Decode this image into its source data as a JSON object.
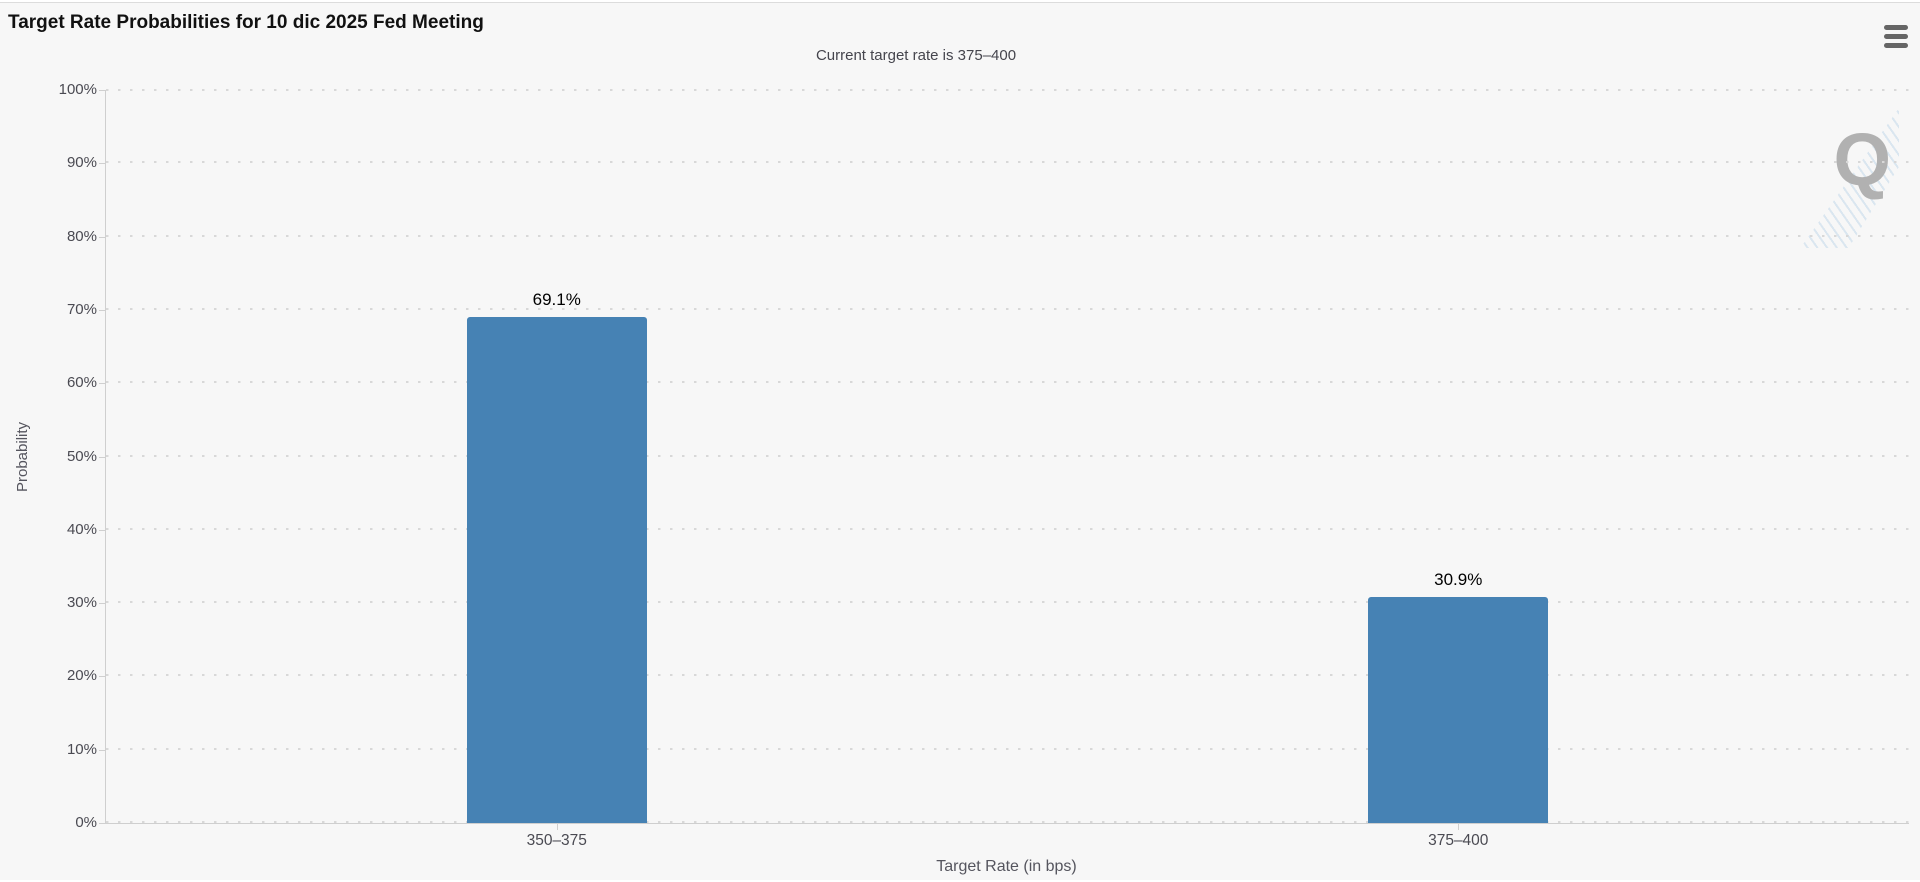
{
  "chart_data": {
    "type": "bar",
    "title": "Target Rate Probabilities for 10 dic 2025 Fed Meeting",
    "subtitle": "Current target rate is 375–400",
    "categories": [
      "350–375",
      "375–400"
    ],
    "values": [
      69.1,
      30.9
    ],
    "data_labels": [
      "69.1%",
      "30.9%"
    ],
    "xlabel": "Target Rate (in bps)",
    "ylabel": "Probability",
    "ylim": [
      0,
      100
    ],
    "ytick_step": 10,
    "ytick_suffix": "%",
    "grid": "dotted-horizontal",
    "legend_position": "none",
    "bar_color": "#4682b4",
    "data_label_color": "#000000"
  },
  "header": {
    "menu_icon": "hamburger-icon"
  },
  "watermark": {
    "letter": "Q"
  },
  "colors": {
    "background": "#f7f7f7",
    "top_border": "#dcdcdc",
    "axis_line": "#cfcfcf",
    "gridline": "#d8d8d8",
    "tick_label": "#4a4a52",
    "axis_title": "#55555e",
    "subtitle_text": "#45454d",
    "title_text": "#111111",
    "menu_icon": "#666666",
    "watermark": "#b1b1b1",
    "bar": "#4682b4"
  }
}
